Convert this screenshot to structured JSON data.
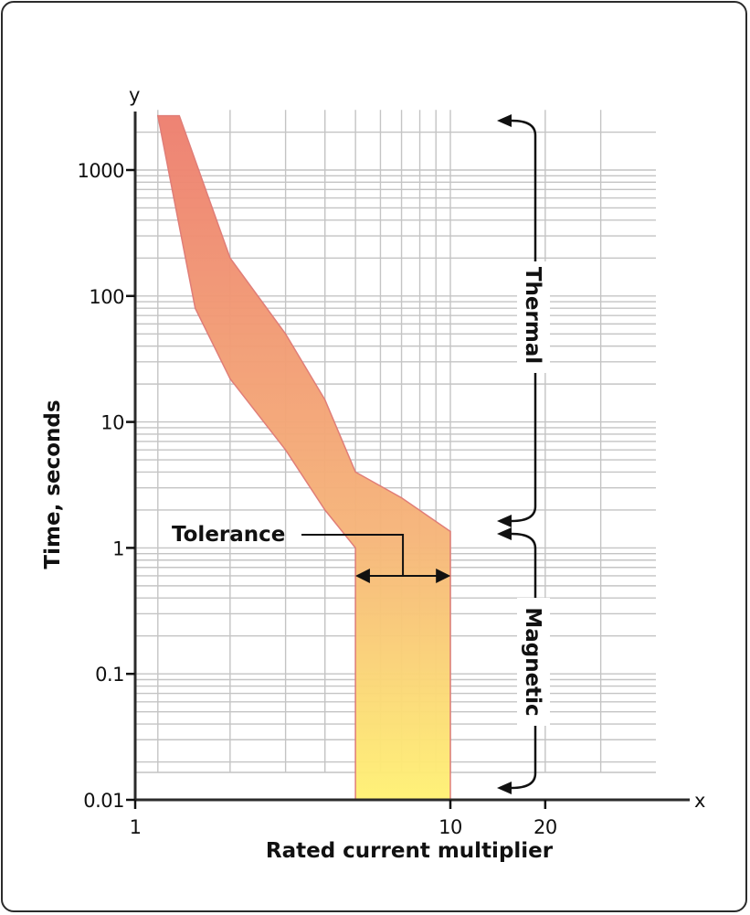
{
  "chart_data": {
    "type": "area",
    "xlabel": "Rated current multiplier",
    "ylabel": "Time, seconds",
    "x_axis_letter": "x",
    "y_axis_letter": "y",
    "x_scale": "log",
    "y_scale": "log",
    "xlim": [
      1,
      40
    ],
    "ylim": [
      0.01,
      3000
    ],
    "x_ticks": [
      {
        "value": 1,
        "label": "1"
      },
      {
        "value": 10,
        "label": "10"
      },
      {
        "value": 20,
        "label": "20"
      }
    ],
    "y_ticks": [
      {
        "value": 0.01,
        "label": "0.01"
      },
      {
        "value": 0.1,
        "label": "0.1"
      },
      {
        "value": 1,
        "label": "1"
      },
      {
        "value": 10,
        "label": "10"
      },
      {
        "value": 100,
        "label": "100"
      },
      {
        "value": 1000,
        "label": "1000"
      }
    ],
    "x_gridlines": [
      1.18,
      2,
      3,
      4,
      5,
      6,
      7,
      8,
      9,
      10,
      20,
      30
    ],
    "grid": true,
    "thermal_band": {
      "upper": [
        [
          1.38,
          2700
        ],
        [
          2.0,
          200
        ],
        [
          3.0,
          50
        ],
        [
          4.0,
          15
        ],
        [
          5.0,
          4.0
        ],
        [
          7.0,
          2.5
        ],
        [
          10.0,
          1.35
        ]
      ],
      "lower": [
        [
          1.18,
          2700
        ],
        [
          1.55,
          80
        ],
        [
          2.0,
          22
        ],
        [
          3.0,
          6.0
        ],
        [
          4.0,
          2.0
        ],
        [
          5.0,
          1.0
        ]
      ]
    },
    "magnetic_band": {
      "x_min": 5,
      "x_max": 10,
      "y_min": 0.01,
      "y_max": 1.0
    },
    "colors": {
      "band_top": "#ee8070",
      "band_mid": "#f6b67a",
      "band_bottom": "#fff275",
      "band_edge": "#e07a74",
      "axis": "#2b2b2b"
    },
    "annotations": {
      "tolerance": "Tolerance",
      "thermal": "Thermal",
      "magnetic": "Magnetic"
    }
  }
}
